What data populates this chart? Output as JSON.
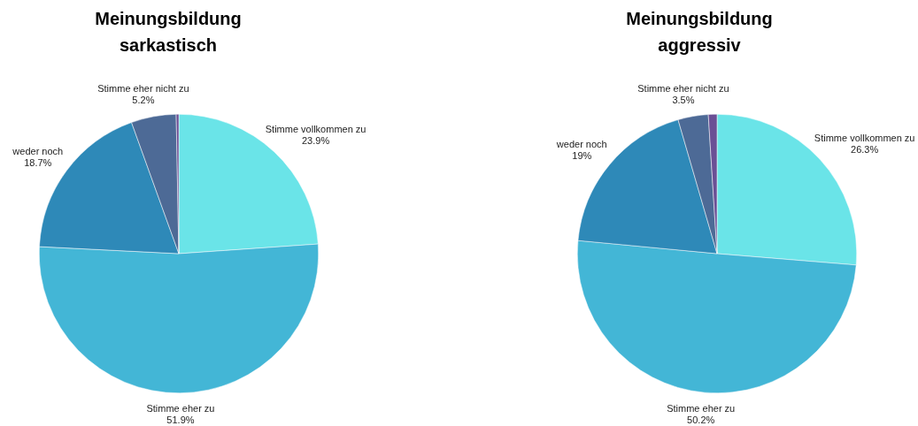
{
  "chart_data": [
    {
      "type": "pie",
      "title": "Meinungsbildung\nsarkastisch",
      "categories": [
        "Stimme vollkommen zu",
        "Stimme eher zu",
        "weder noch",
        "Stimme eher nicht zu",
        null
      ],
      "values": [
        23.9,
        51.9,
        18.7,
        5.2,
        0.3
      ],
      "value_labels": [
        "23.9%",
        "51.9%",
        "18.7%",
        "5.2%",
        null
      ],
      "colors": [
        "#6ae4e8",
        "#43b6d6",
        "#2e89b8",
        "#4d6a96",
        "#6a4f95"
      ],
      "legend": false
    },
    {
      "type": "pie",
      "title": "Meinungsbildung\naggressiv",
      "categories": [
        "Stimme vollkommen zu",
        "Stimme eher zu",
        "weder noch",
        "Stimme eher nicht zu",
        null
      ],
      "values": [
        26.3,
        50.2,
        19,
        3.5,
        1.0
      ],
      "value_labels": [
        "26.3%",
        "50.2%",
        "19%",
        "3.5%",
        null
      ],
      "colors": [
        "#6ae4e8",
        "#43b6d6",
        "#2e89b8",
        "#4d6a96",
        "#6a4f95"
      ],
      "legend": false
    }
  ]
}
